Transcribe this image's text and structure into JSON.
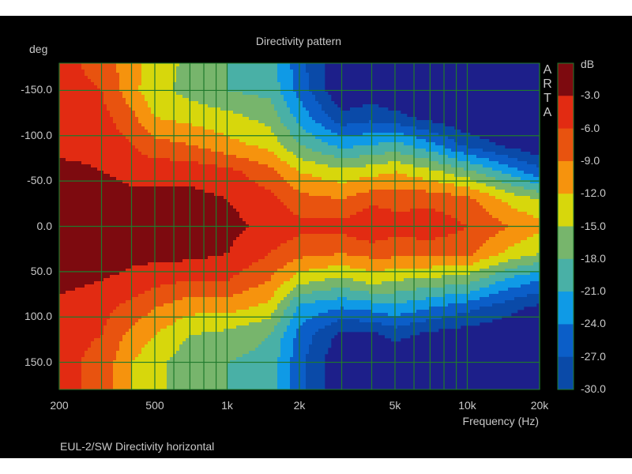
{
  "chart_data": {
    "type": "heatmap",
    "title": "Directivity pattern",
    "xlabel": "Frequency (Hz)",
    "ylabel": "deg",
    "xscale": "log",
    "xlim": [
      200,
      20000
    ],
    "ylim": [
      -180,
      180
    ],
    "x_ticks": [
      200,
      500,
      1000,
      2000,
      5000,
      10000,
      20000
    ],
    "x_tick_labels": [
      "200",
      "500",
      "1k",
      "2k",
      "5k",
      "10k",
      "20k"
    ],
    "y_ticks": [
      -150,
      -100,
      -50,
      0,
      50,
      100,
      150
    ],
    "y_tick_labels": [
      "-150.0",
      "-100.0",
      "-50.0",
      "0.0",
      "50.0",
      "100.0",
      "150.0"
    ],
    "grid": true,
    "colorbar": {
      "label": "dB",
      "ticks": [
        "-3.0",
        "-6.0",
        "-9.0",
        "-12.0",
        "-15.0",
        "-18.0",
        "-21.0",
        "-24.0",
        "-27.0",
        "-30.0"
      ],
      "band_edges": [
        0,
        -3,
        -6,
        -9,
        -12,
        -15,
        -18,
        -21,
        -24,
        -27,
        -30
      ],
      "colors": [
        "#7d0a0f",
        "#e22b12",
        "#e8530f",
        "#f6930d",
        "#d7d70c",
        "#77b56c",
        "#49b0a6",
        "#0f9ae6",
        "#0b5ec8",
        "#0a4aa8"
      ],
      "below_color": "#1d1f8a"
    },
    "frequencies": [
      200,
      300,
      400,
      500,
      700,
      1000,
      1500,
      2000,
      3000,
      4000,
      5000,
      7000,
      10000,
      15000,
      20000
    ],
    "angles": [
      -180,
      -150,
      -120,
      -90,
      -60,
      -30,
      0,
      30,
      60,
      90,
      120,
      150,
      180
    ],
    "values_db": [
      [
        -5,
        -5,
        -5,
        -4,
        -2,
        -1,
        -1,
        -1,
        -2,
        -4,
        -5,
        -5,
        -5
      ],
      [
        -7,
        -6,
        -5,
        -4,
        -3,
        -1,
        -1,
        -1,
        -3,
        -5,
        -6,
        -7,
        -7
      ],
      [
        -11,
        -11,
        -8,
        -6,
        -4,
        -2,
        -1,
        -2,
        -4,
        -7,
        -10,
        -12,
        -12
      ],
      [
        -13,
        -14,
        -12,
        -8,
        -4,
        -2,
        -1,
        -2,
        -5,
        -9,
        -12,
        -14,
        -14
      ],
      [
        -16,
        -16,
        -13,
        -9,
        -4,
        -2,
        -1,
        -2,
        -6,
        -11,
        -15,
        -17,
        -17
      ],
      [
        -18,
        -18,
        -14,
        -11,
        -5,
        -3,
        -2,
        -3,
        -6,
        -11,
        -16,
        -18,
        -18
      ],
      [
        -19,
        -19,
        -16,
        -13,
        -8,
        -5,
        -4,
        -6,
        -9,
        -13,
        -18,
        -19,
        -19
      ],
      [
        -26,
        -25,
        -22,
        -18,
        -12,
        -8,
        -5,
        -8,
        -14,
        -22,
        -25,
        -26,
        -26
      ],
      [
        -33,
        -33,
        -29,
        -22,
        -14,
        -9,
        -5,
        -9,
        -16,
        -24,
        -31,
        -33,
        -33
      ],
      [
        -33,
        -32,
        -28,
        -21,
        -13,
        -7,
        -3,
        -8,
        -14,
        -23,
        -31,
        -33,
        -33
      ],
      [
        -33,
        -33,
        -29,
        -20,
        -12,
        -7,
        -5,
        -8,
        -15,
        -22,
        -29,
        -33,
        -33
      ],
      [
        -33,
        -33,
        -31,
        -23,
        -14,
        -7,
        -4,
        -8,
        -16,
        -24,
        -31,
        -33,
        -33
      ],
      [
        -33,
        -33,
        -33,
        -28,
        -17,
        -8,
        -6,
        -8,
        -17,
        -26,
        -32,
        -33,
        -33
      ],
      [
        -33,
        -33,
        -33,
        -31,
        -22,
        -13,
        -9,
        -13,
        -22,
        -29,
        -33,
        -33,
        -33
      ],
      [
        -33,
        -33,
        -33,
        -33,
        -26,
        -15,
        -11,
        -15,
        -24,
        -31,
        -33,
        -33,
        -33
      ]
    ]
  },
  "watermark": "ARTA",
  "footer": "EUL-2/SW  Directivity horizontal",
  "colors": {
    "grid": "#1f7a2c",
    "text": "#c8c8c8",
    "background": "#000000"
  }
}
